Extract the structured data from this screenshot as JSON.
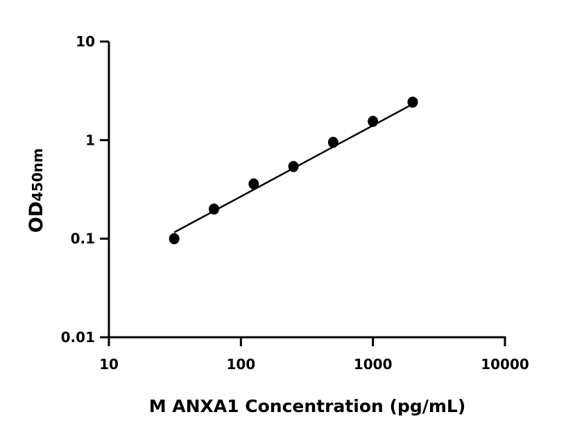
{
  "chart_data": {
    "type": "scatter",
    "title": "",
    "xlabel": "M ANXA1 Concentration (pg/mL)",
    "ylabel_main": "OD",
    "ylabel_sub": "450nm",
    "x_scale": "log",
    "y_scale": "log",
    "xlim": [
      10,
      10000
    ],
    "ylim": [
      0.01,
      10
    ],
    "x_ticks": [
      "10",
      "100",
      "1000",
      "10000"
    ],
    "y_ticks": [
      "10",
      "1",
      "0.1",
      "0.01"
    ],
    "x_tick_values": [
      10,
      100,
      1000,
      10000
    ],
    "y_tick_values": [
      10,
      1,
      0.1,
      0.01
    ],
    "grid": false,
    "series": [
      {
        "x": [
          31.25,
          62.5,
          125,
          250,
          500,
          1000,
          2000
        ],
        "y": [
          0.1,
          0.2,
          0.36,
          0.54,
          0.95,
          1.55,
          2.43
        ],
        "marker_color": "#000000"
      }
    ],
    "fit_line": {
      "x": [
        31.25,
        2000
      ],
      "y": [
        0.116,
        2.32
      ],
      "color": "#000000"
    }
  }
}
